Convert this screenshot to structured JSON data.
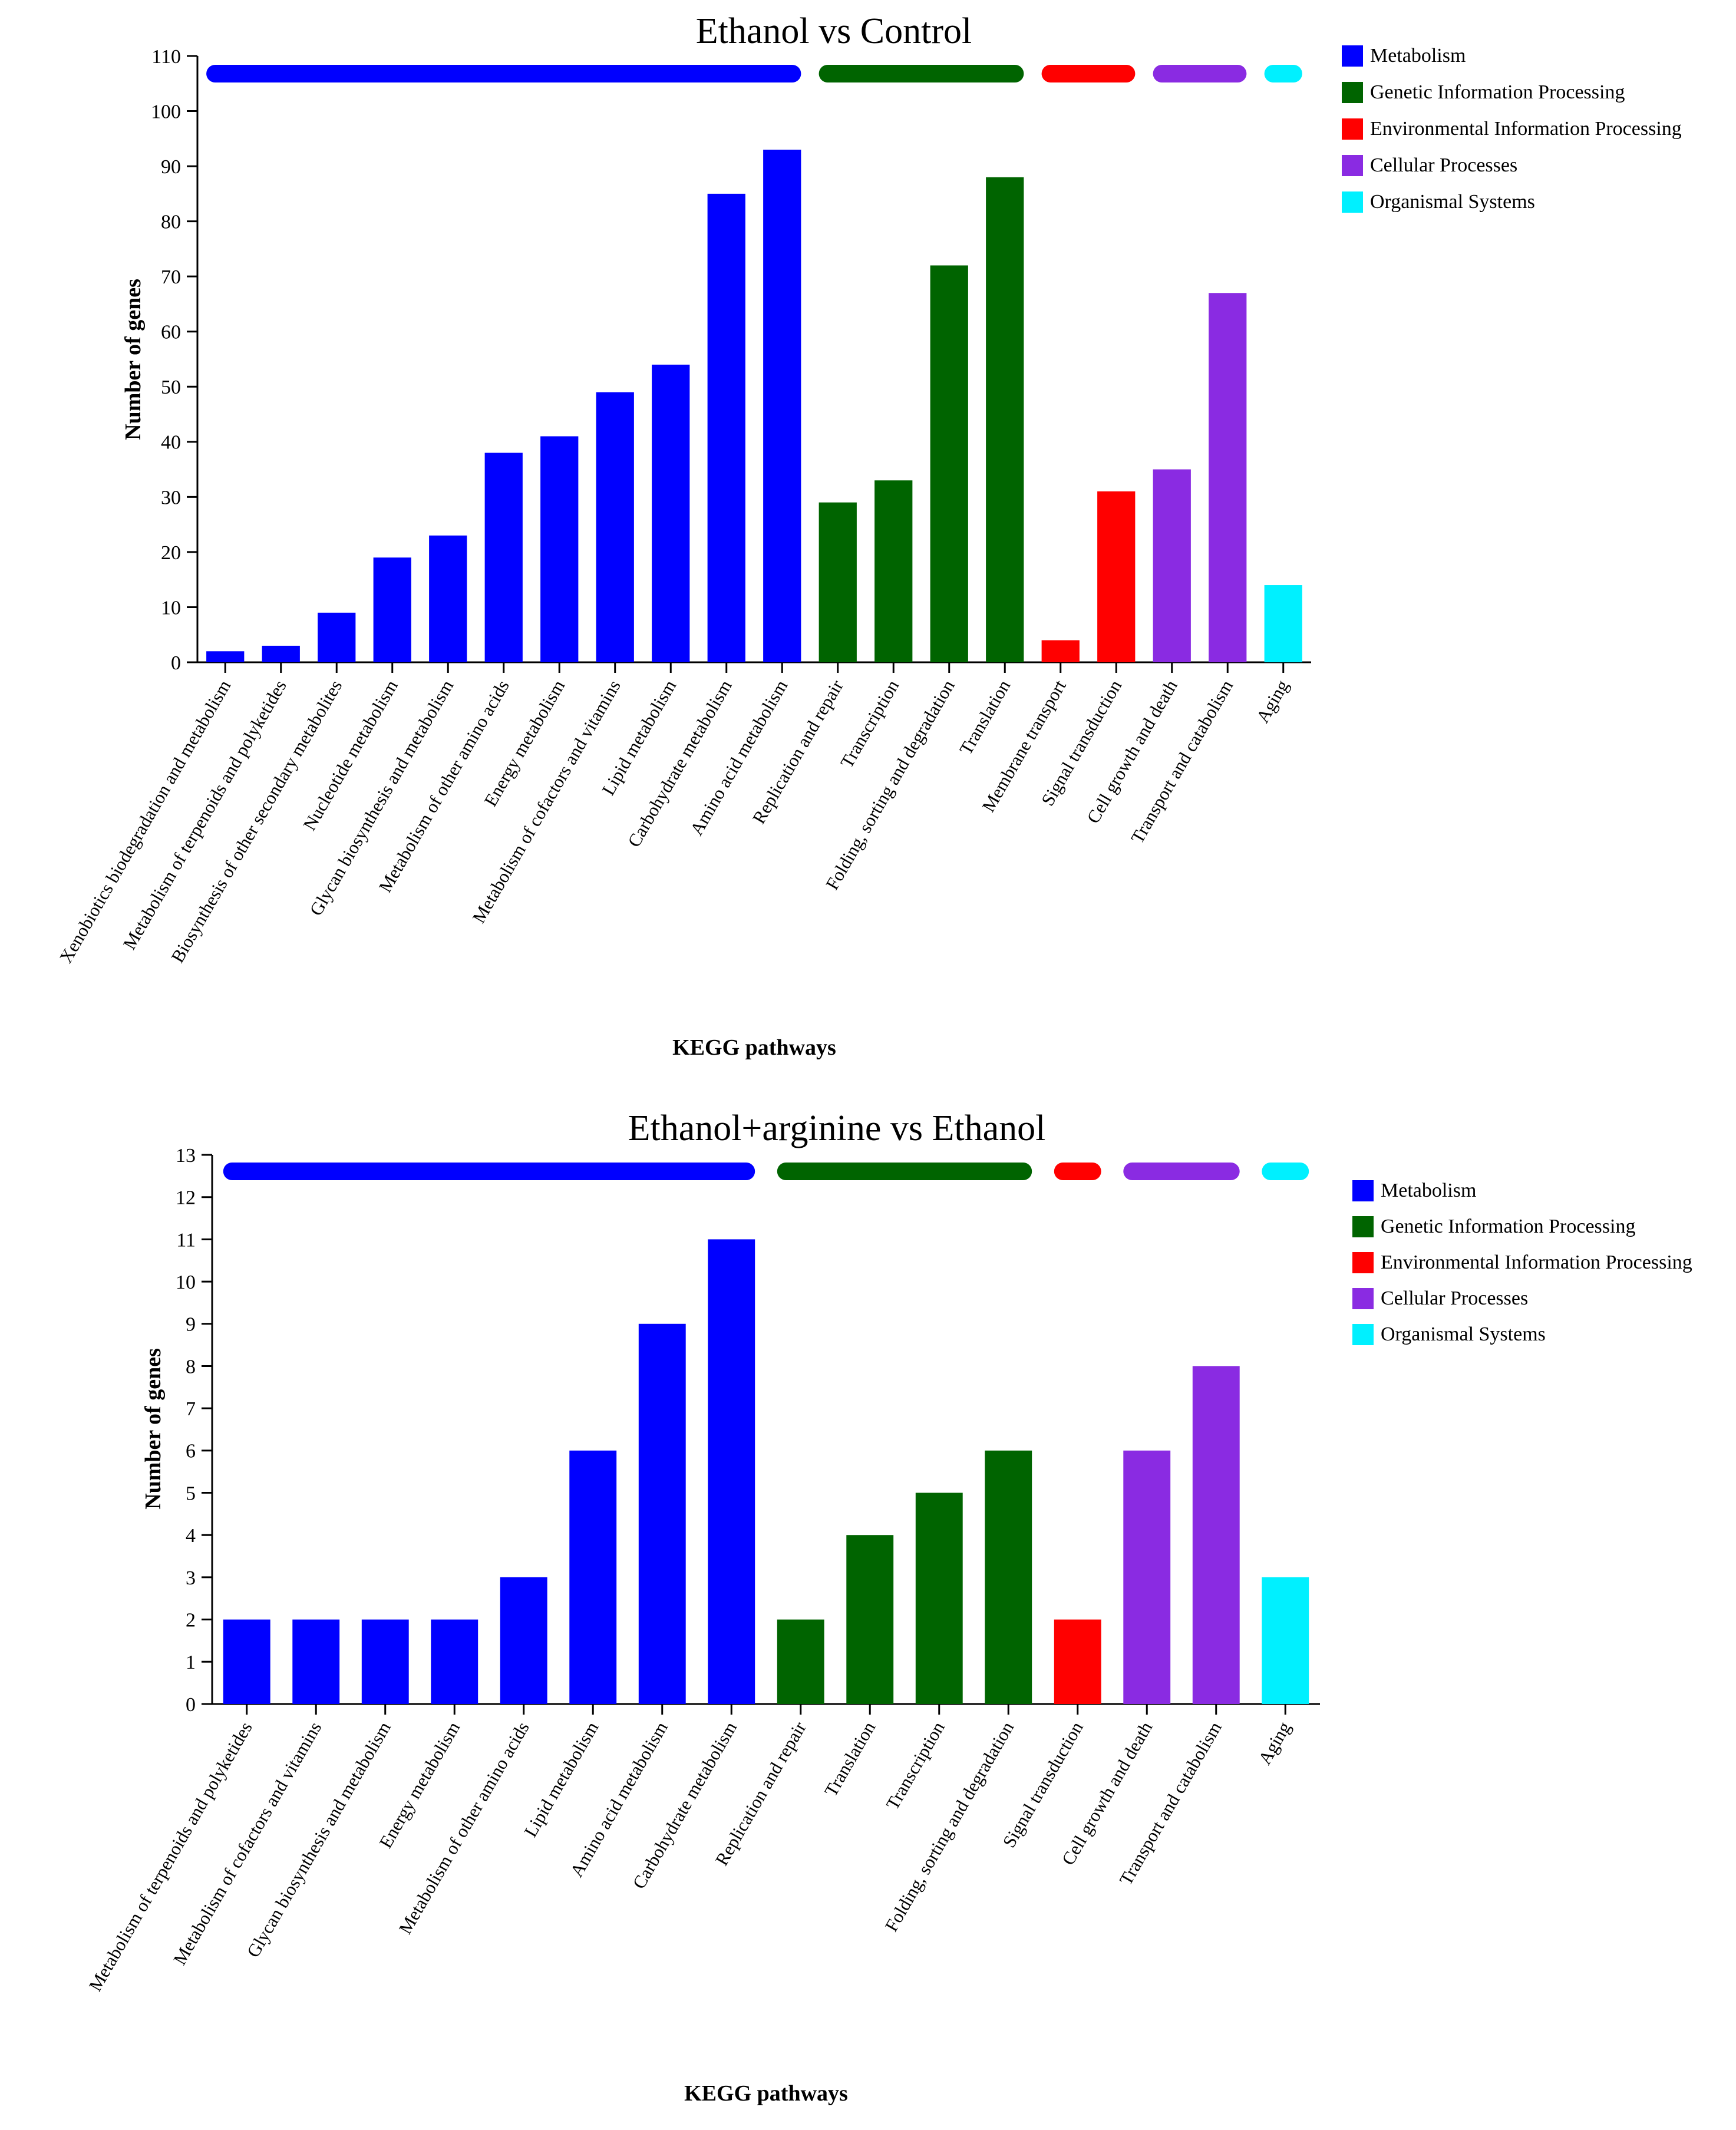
{
  "colors": {
    "metabolism": "#0000FF",
    "genetic": "#006400",
    "environmental": "#FF0000",
    "cellular": "#8A2BE2",
    "organismal": "#00F0FF"
  },
  "legend": {
    "metabolism": "Metabolism",
    "genetic": "Genetic Information Processing",
    "environmental": "Environmental Information Processing",
    "cellular": "Cellular Processes",
    "organismal": "Organismal Systems"
  },
  "chart_data": [
    {
      "type": "bar",
      "title": "Ethanol vs Control",
      "xlabel": "KEGG pathways",
      "ylabel": "Number of genes",
      "ylim": [
        0,
        110
      ],
      "yticks": [
        0,
        10,
        20,
        30,
        40,
        50,
        60,
        70,
        80,
        90,
        100,
        110
      ],
      "legend_position": "top-right",
      "categories": [
        "Xenobiotics biodegradation and metabolism",
        "Metabolism of terpenoids and polyketides",
        "Biosynthesis of other secondary metabolites",
        "Nucleotide metabolism",
        "Glycan biosynthesis and metabolism",
        "Metabolism of other amino acids",
        "Energy metabolism",
        "Metabolism of cofactors and vitamins",
        "Lipid metabolism",
        "Carbohydrate metabolism",
        "Amino acid metabolism",
        "Replication and repair",
        "Transcription",
        "Folding, sorting and degradation",
        "Translation",
        "Membrane transport",
        "Signal transduction",
        "Cell growth and death",
        "Transport and catabolism",
        "Aging"
      ],
      "values": [
        2,
        3,
        9,
        19,
        23,
        38,
        41,
        49,
        54,
        85,
        93,
        29,
        33,
        72,
        88,
        4,
        31,
        35,
        67,
        14
      ],
      "groups": [
        "metabolism",
        "metabolism",
        "metabolism",
        "metabolism",
        "metabolism",
        "metabolism",
        "metabolism",
        "metabolism",
        "metabolism",
        "metabolism",
        "metabolism",
        "genetic",
        "genetic",
        "genetic",
        "genetic",
        "environmental",
        "environmental",
        "cellular",
        "cellular",
        "organismal"
      ]
    },
    {
      "type": "bar",
      "title": "Ethanol+arginine vs Ethanol",
      "xlabel": "KEGG pathways",
      "ylabel": "Number of genes",
      "ylim": [
        0,
        13
      ],
      "yticks": [
        0,
        1,
        2,
        3,
        4,
        5,
        6,
        7,
        8,
        9,
        10,
        11,
        12,
        13
      ],
      "legend_position": "top-right",
      "categories": [
        "Metabolism of terpenoids and polyketides",
        "Metabolism of cofactors and vitamins",
        "Glycan biosynthesis and metabolism",
        "Energy metabolism",
        "Metabolism of other amino acids",
        "Lipid metabolism",
        "Amino acid metabolism",
        "Carbohydrate metabolism",
        "Replication and repair",
        "Translation",
        "Transcription",
        "Folding, sorting and degradation",
        "Signal transduction",
        "Cell growth and death",
        "Transport and catabolism",
        "Aging"
      ],
      "values": [
        2,
        2,
        2,
        2,
        3,
        6,
        9,
        11,
        2,
        4,
        5,
        6,
        2,
        6,
        8,
        3
      ],
      "groups": [
        "metabolism",
        "metabolism",
        "metabolism",
        "metabolism",
        "metabolism",
        "metabolism",
        "metabolism",
        "metabolism",
        "genetic",
        "genetic",
        "genetic",
        "genetic",
        "environmental",
        "cellular",
        "cellular",
        "organismal"
      ]
    }
  ]
}
